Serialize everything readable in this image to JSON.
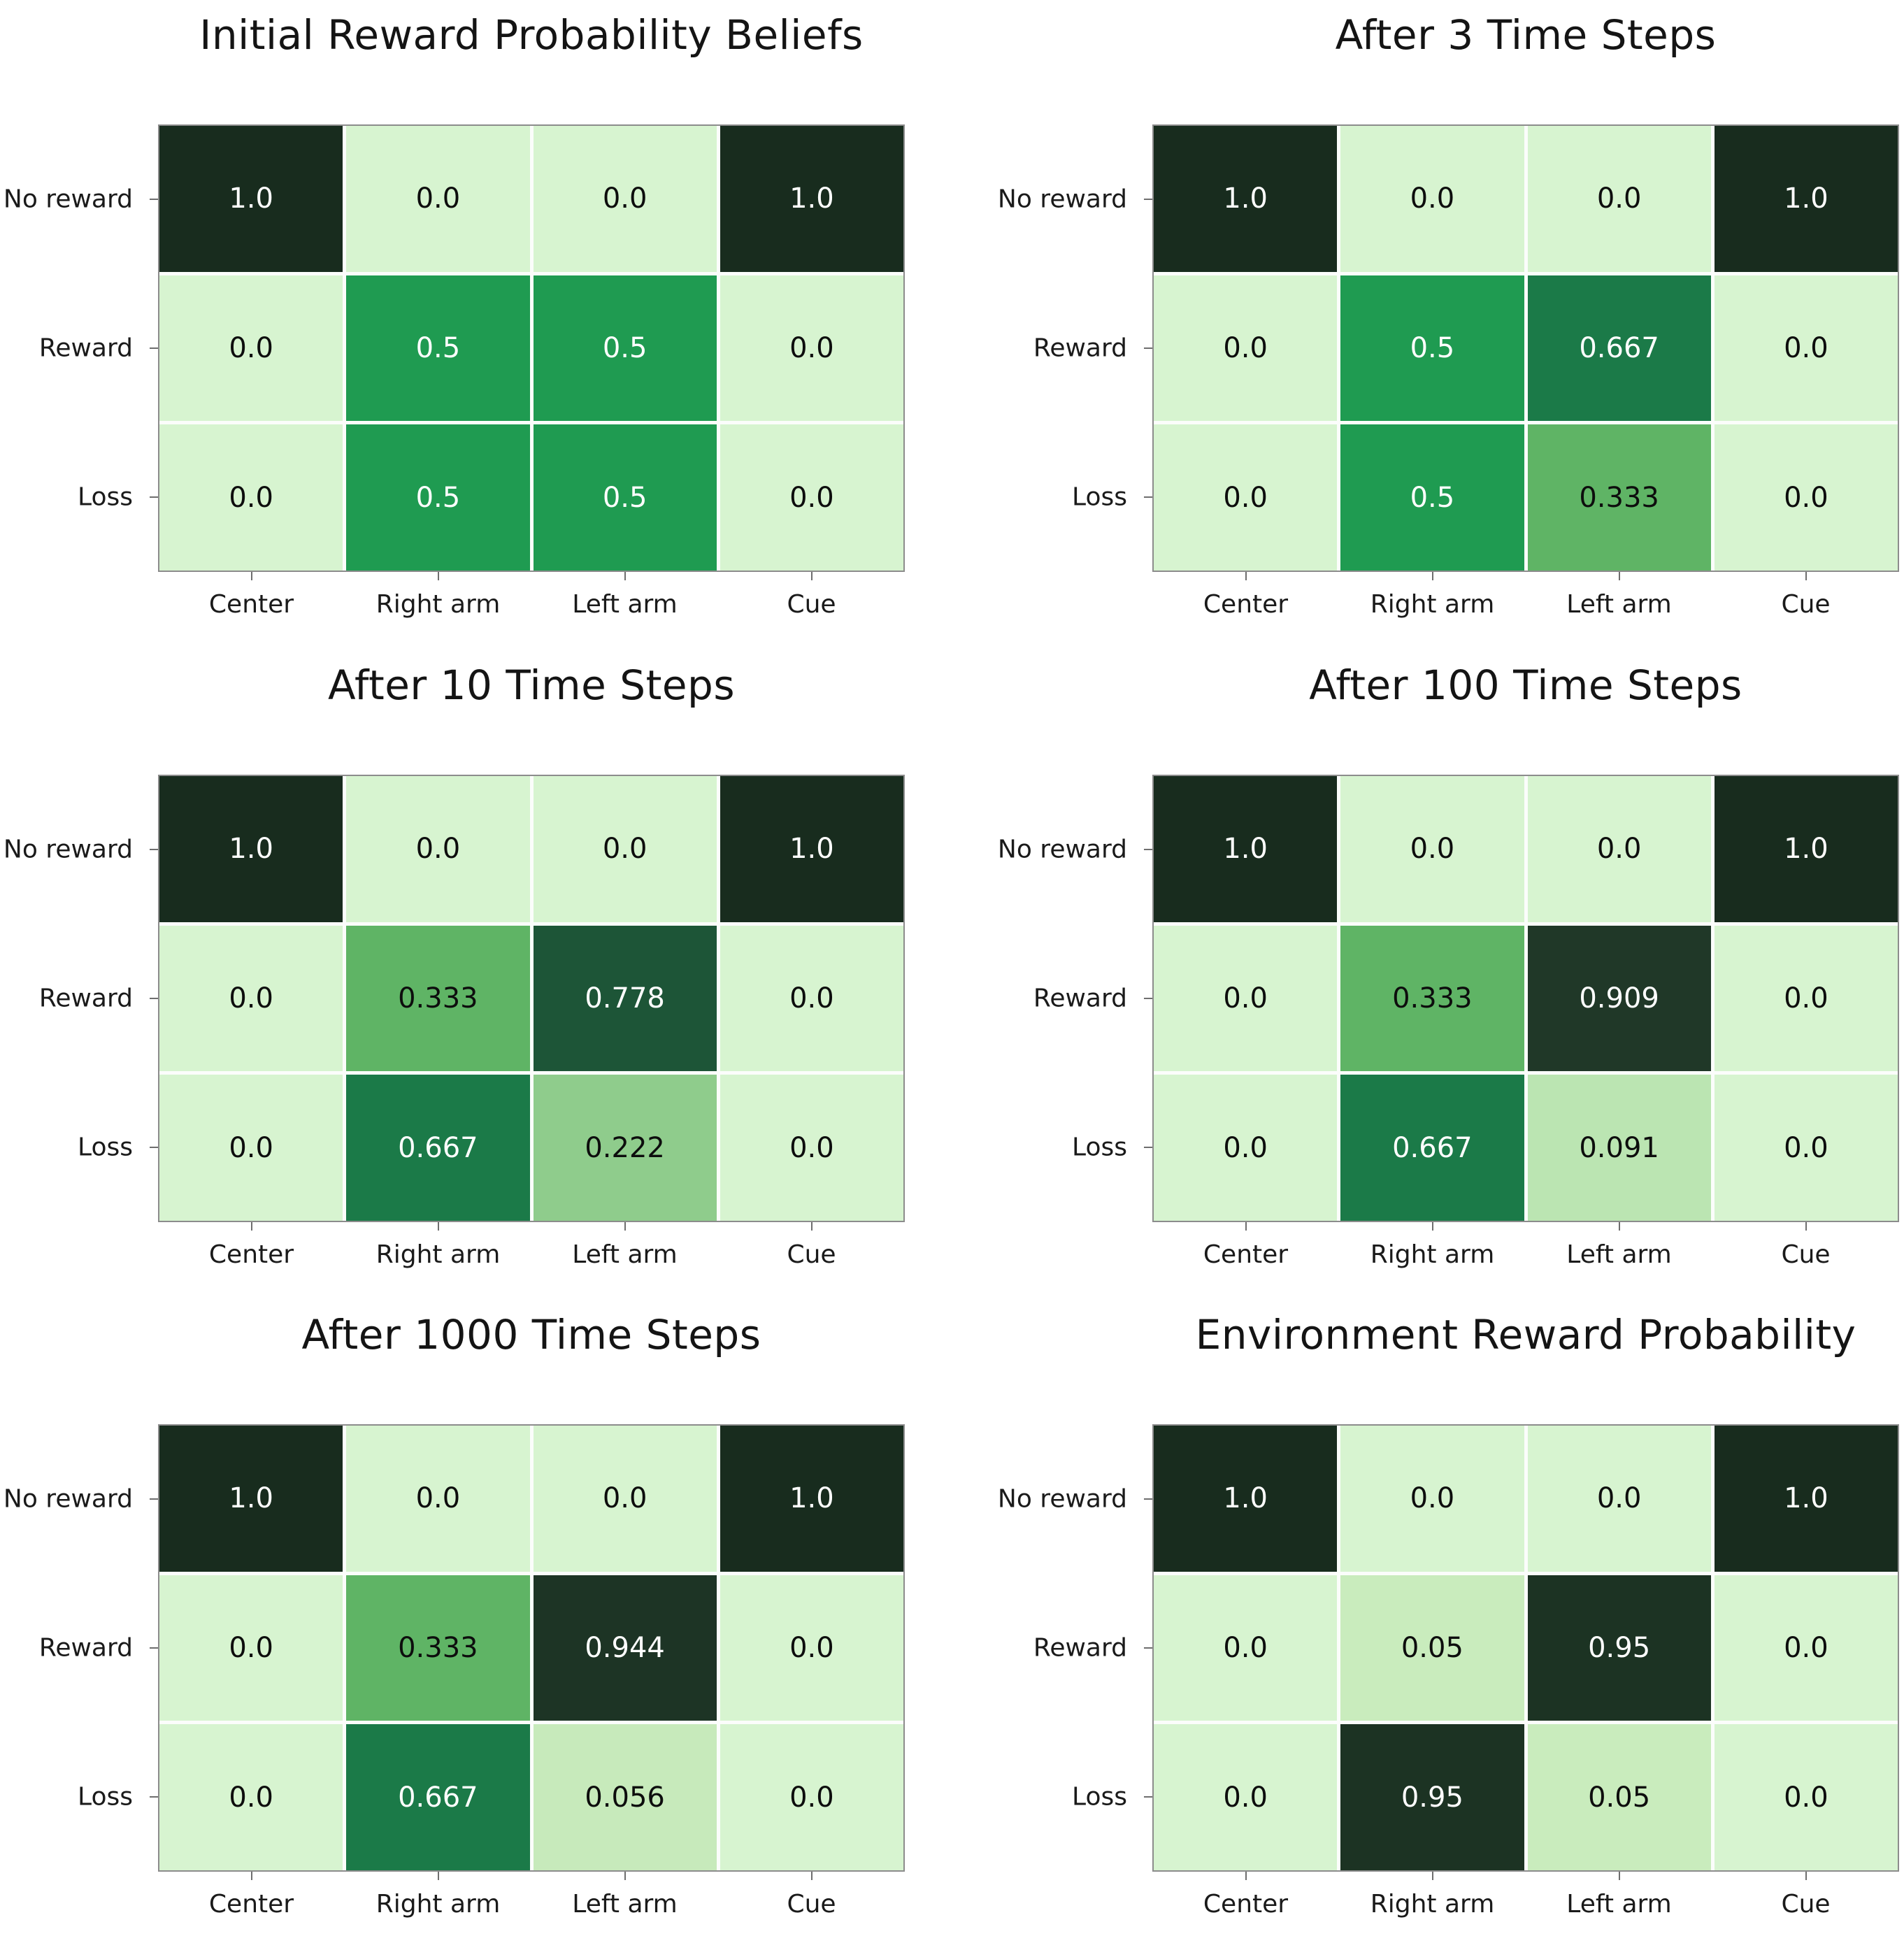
{
  "figure": {
    "background_color": "#ffffff",
    "title_color": "#141414",
    "axis_label_color": "#1a1a1a",
    "grid_border_color": "#8c8c8c",
    "cell_gap_color": "#fbfdfb",
    "annotation_text_dark": "#0d0d0d",
    "annotation_text_light": "#ffffff",
    "colormap_name": "green-sequential",
    "colormap_stops": [
      {
        "value": 0.0,
        "color": "#d7f4d0"
      },
      {
        "value": 0.05,
        "color": "#c9ecbd"
      },
      {
        "value": 0.056,
        "color": "#c7eabb"
      },
      {
        "value": 0.091,
        "color": "#bbe5b2"
      },
      {
        "value": 0.222,
        "color": "#8fcc8c"
      },
      {
        "value": 0.333,
        "color": "#5fb465"
      },
      {
        "value": 0.5,
        "color": "#1f9b51"
      },
      {
        "value": 0.667,
        "color": "#1b7a48"
      },
      {
        "value": 0.778,
        "color": "#1d5537"
      },
      {
        "value": 0.909,
        "color": "#203828"
      },
      {
        "value": 0.944,
        "color": "#1d3425"
      },
      {
        "value": 0.95,
        "color": "#1c3323"
      },
      {
        "value": 1.0,
        "color": "#182c1e"
      }
    ]
  },
  "chart_data": [
    {
      "type": "heatmap",
      "title": "Initial Reward Probability Beliefs",
      "x_categories": [
        "Center",
        "Right arm",
        "Left arm",
        "Cue"
      ],
      "y_categories": [
        "No reward",
        "Reward",
        "Loss"
      ],
      "values": [
        [
          1.0,
          0.0,
          0.0,
          1.0
        ],
        [
          0.0,
          0.5,
          0.5,
          0.0
        ],
        [
          0.0,
          0.5,
          0.5,
          0.0
        ]
      ],
      "cell_labels": [
        [
          "1.0",
          "0.0",
          "0.0",
          "1.0"
        ],
        [
          "0.0",
          "0.5",
          "0.5",
          "0.0"
        ],
        [
          "0.0",
          "0.5",
          "0.5",
          "0.0"
        ]
      ],
      "value_range": [
        0,
        1
      ],
      "legend": "none",
      "grid": "off"
    },
    {
      "type": "heatmap",
      "title": "After 3 Time Steps",
      "x_categories": [
        "Center",
        "Right arm",
        "Left arm",
        "Cue"
      ],
      "y_categories": [
        "No reward",
        "Reward",
        "Loss"
      ],
      "values": [
        [
          1.0,
          0.0,
          0.0,
          1.0
        ],
        [
          0.0,
          0.5,
          0.667,
          0.0
        ],
        [
          0.0,
          0.5,
          0.333,
          0.0
        ]
      ],
      "cell_labels": [
        [
          "1.0",
          "0.0",
          "0.0",
          "1.0"
        ],
        [
          "0.0",
          "0.5",
          "0.667",
          "0.0"
        ],
        [
          "0.0",
          "0.5",
          "0.333",
          "0.0"
        ]
      ],
      "value_range": [
        0,
        1
      ],
      "legend": "none",
      "grid": "off"
    },
    {
      "type": "heatmap",
      "title": "After 10 Time Steps",
      "x_categories": [
        "Center",
        "Right arm",
        "Left arm",
        "Cue"
      ],
      "y_categories": [
        "No reward",
        "Reward",
        "Loss"
      ],
      "values": [
        [
          1.0,
          0.0,
          0.0,
          1.0
        ],
        [
          0.0,
          0.333,
          0.778,
          0.0
        ],
        [
          0.0,
          0.667,
          0.222,
          0.0
        ]
      ],
      "cell_labels": [
        [
          "1.0",
          "0.0",
          "0.0",
          "1.0"
        ],
        [
          "0.0",
          "0.333",
          "0.778",
          "0.0"
        ],
        [
          "0.0",
          "0.667",
          "0.222",
          "0.0"
        ]
      ],
      "value_range": [
        0,
        1
      ],
      "legend": "none",
      "grid": "off"
    },
    {
      "type": "heatmap",
      "title": "After 100 Time Steps",
      "x_categories": [
        "Center",
        "Right arm",
        "Left arm",
        "Cue"
      ],
      "y_categories": [
        "No reward",
        "Reward",
        "Loss"
      ],
      "values": [
        [
          1.0,
          0.0,
          0.0,
          1.0
        ],
        [
          0.0,
          0.333,
          0.909,
          0.0
        ],
        [
          0.0,
          0.667,
          0.091,
          0.0
        ]
      ],
      "cell_labels": [
        [
          "1.0",
          "0.0",
          "0.0",
          "1.0"
        ],
        [
          "0.0",
          "0.333",
          "0.909",
          "0.0"
        ],
        [
          "0.0",
          "0.667",
          "0.091",
          "0.0"
        ]
      ],
      "value_range": [
        0,
        1
      ],
      "legend": "none",
      "grid": "off"
    },
    {
      "type": "heatmap",
      "title": "After 1000 Time Steps",
      "x_categories": [
        "Center",
        "Right arm",
        "Left arm",
        "Cue"
      ],
      "y_categories": [
        "No reward",
        "Reward",
        "Loss"
      ],
      "values": [
        [
          1.0,
          0.0,
          0.0,
          1.0
        ],
        [
          0.0,
          0.333,
          0.944,
          0.0
        ],
        [
          0.0,
          0.667,
          0.056,
          0.0
        ]
      ],
      "cell_labels": [
        [
          "1.0",
          "0.0",
          "0.0",
          "1.0"
        ],
        [
          "0.0",
          "0.333",
          "0.944",
          "0.0"
        ],
        [
          "0.0",
          "0.667",
          "0.056",
          "0.0"
        ]
      ],
      "value_range": [
        0,
        1
      ],
      "legend": "none",
      "grid": "off"
    },
    {
      "type": "heatmap",
      "title": "Environment Reward Probability",
      "x_categories": [
        "Center",
        "Right arm",
        "Left arm",
        "Cue"
      ],
      "y_categories": [
        "No reward",
        "Reward",
        "Loss"
      ],
      "values": [
        [
          1.0,
          0.0,
          0.0,
          1.0
        ],
        [
          0.0,
          0.05,
          0.95,
          0.0
        ],
        [
          0.0,
          0.95,
          0.05,
          0.0
        ]
      ],
      "cell_labels": [
        [
          "1.0",
          "0.0",
          "0.0",
          "1.0"
        ],
        [
          "0.0",
          "0.05",
          "0.95",
          "0.0"
        ],
        [
          "0.0",
          "0.95",
          "0.05",
          "0.0"
        ]
      ],
      "value_range": [
        0,
        1
      ],
      "legend": "none",
      "grid": "off"
    }
  ]
}
